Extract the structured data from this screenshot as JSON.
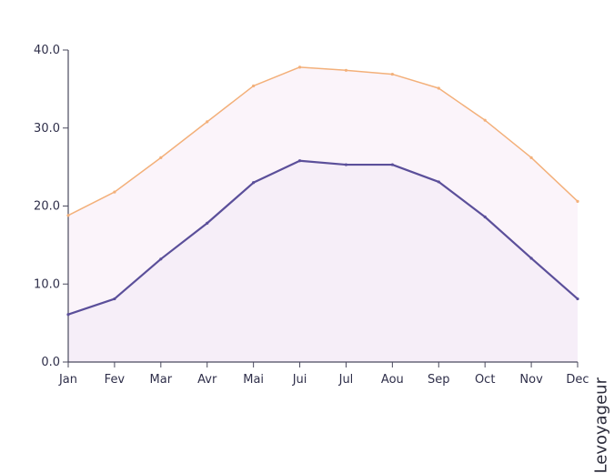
{
  "chart_data": {
    "type": "area",
    "categories": [
      "Jan",
      "Fev",
      "Mar",
      "Avr",
      "Mai",
      "Jui",
      "Jul",
      "Aou",
      "Sep",
      "Oct",
      "Nov",
      "Dec"
    ],
    "series": [
      {
        "color": "#f3b07a",
        "fill": "#fbf4fa",
        "values": [
          18.8,
          21.8,
          26.2,
          30.8,
          35.4,
          37.8,
          37.4,
          36.9,
          35.1,
          31.0,
          26.2,
          20.6
        ]
      },
      {
        "color": "#5b4f9a",
        "fill": "#f6eef8",
        "values": [
          6.1,
          8.1,
          13.2,
          17.8,
          23.0,
          25.8,
          25.3,
          25.3,
          23.1,
          18.6,
          13.3,
          8.1
        ]
      }
    ],
    "title": "",
    "xlabel": "",
    "ylabel": "",
    "ylim": [
      0,
      40
    ],
    "yticks": [
      "0.0",
      "10.0",
      "20.0",
      "30.0",
      "40.0"
    ],
    "grid": false
  },
  "watermark": "Levoyageur"
}
